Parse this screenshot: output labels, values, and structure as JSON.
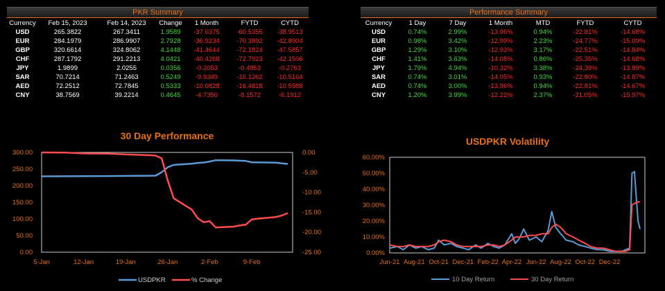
{
  "pkr": {
    "title": "PKR Summary",
    "columns": [
      "Currency",
      "Feb 15, 2023",
      "Feb 14, 2023",
      "Change",
      "1 Month",
      "FYTD",
      "CYTD"
    ],
    "rows": [
      [
        "USD",
        "265.3822",
        "267.3411",
        "1.9589",
        "-37.0375",
        "-60.5355",
        "-38.9513"
      ],
      [
        "EUR",
        "284.1979",
        "286.9907",
        "2.7928",
        "-36.9234",
        "-70.3892",
        "-42.8904"
      ],
      [
        "GBP",
        "320.6614",
        "324.8062",
        "4.1448",
        "-41.4644",
        "-72.1824",
        "-47.5857"
      ],
      [
        "CHF",
        "287.1792",
        "291.2213",
        "4.0421",
        "-40.4268",
        "-72.7923",
        "-42.1506"
      ],
      [
        "JPY",
        "1.9899",
        "2.0255",
        "0.0356",
        "-0.2053",
        "-0.4853",
        "-0.2763"
      ],
      [
        "SAR",
        "70.7214",
        "71.2463",
        "0.5249",
        "-9.9349",
        "-16.1262",
        "-10.5164"
      ],
      [
        "AED",
        "72.2512",
        "72.7845",
        "0.5333",
        "-10.0828",
        "-16.4818",
        "-10.5988"
      ],
      [
        "CNY",
        "38.7569",
        "39.2214",
        "0.4645",
        "-4.7350",
        "-8.1572",
        "-6.1912"
      ]
    ]
  },
  "perf": {
    "title": "Performance Summary",
    "columns": [
      "Currency",
      "1 Day",
      "7 Day",
      "1 Month",
      "MTD",
      "FYTD",
      "CYTD"
    ],
    "rows": [
      [
        "USD",
        "0.74%",
        "2.99%",
        "-13.96%",
        "0.94%",
        "-22.81%",
        "-14.68%"
      ],
      [
        "EUR",
        "0.98%",
        "3.42%",
        "-12.99%",
        "2.23%",
        "-24.77%",
        "-15.09%"
      ],
      [
        "GBP",
        "1.29%",
        "3.10%",
        "-12.93%",
        "3.17%",
        "-22.51%",
        "-14.84%"
      ],
      [
        "CHF",
        "1.41%",
        "3.63%",
        "-14.08%",
        "0.86%",
        "-25.35%",
        "-14.68%"
      ],
      [
        "JPY",
        "1.79%",
        "4.94%",
        "-10.32%",
        "3.38%",
        "-24.39%",
        "-13.89%"
      ],
      [
        "SAR",
        "0.74%",
        "3.01%",
        "-14.05%",
        "0.93%",
        "-22.80%",
        "-14.87%"
      ],
      [
        "AED",
        "0.74%",
        "3.00%",
        "-13.96%",
        "0.94%",
        "-22.81%",
        "-14.67%"
      ],
      [
        "CNY",
        "1.20%",
        "3.99%",
        "-12.22%",
        "2.37%",
        "-21.05%",
        "-15.97%"
      ]
    ]
  },
  "colors": {
    "accent": "#e8701a",
    "positive": "#45d845",
    "negative": "#ff2b2b",
    "blue": "#5b9bd5",
    "red": "#ff4d4d"
  },
  "chart_data": [
    {
      "type": "line",
      "title": "30 Day Performance",
      "x": [
        "2023-01-05",
        "2023-01-09",
        "2023-01-12",
        "2023-01-16",
        "2023-01-19",
        "2023-01-23",
        "2023-01-24",
        "2023-01-25",
        "2023-01-26",
        "2023-01-27",
        "2023-01-30",
        "2023-01-31",
        "2023-02-01",
        "2023-02-02",
        "2023-02-03",
        "2023-02-06",
        "2023-02-07",
        "2023-02-08",
        "2023-02-09",
        "2023-02-10",
        "2023-02-13",
        "2023-02-14",
        "2023-02-15"
      ],
      "xticks": [
        "5-Jan",
        "12-Jan",
        "19-Jan",
        "26-Jan",
        "2-Feb",
        "9-Feb"
      ],
      "xtick_dates": [
        "2023-01-05",
        "2023-01-12",
        "2023-01-19",
        "2023-01-26",
        "2023-02-02",
        "2023-02-09"
      ],
      "yticks_left": [
        "0.00",
        "50.00",
        "100.00",
        "150.00",
        "200.00",
        "250.00",
        "300.00"
      ],
      "ylim_left": [
        0,
        300
      ],
      "yticks_right": [
        "-25.00",
        "-20.00",
        "-15.00",
        "-10.00",
        "-5.00",
        "0.00"
      ],
      "ylim_right": [
        -25,
        0
      ],
      "series": [
        {
          "name": "USDPKR",
          "axis": "left",
          "color": "#5b9bd5",
          "values": [
            228.2,
            228.3,
            228.6,
            228.9,
            229.4,
            229.9,
            230.3,
            240.5,
            255.4,
            262.6,
            266.0,
            268.5,
            269.6,
            272.8,
            276.6,
            276.1,
            275.3,
            274.4,
            270.4,
            270.1,
            269.1,
            267.3,
            265.4
          ]
        },
        {
          "name": "% Change",
          "axis": "right",
          "color": "#ff4d4d",
          "values": [
            0.0,
            -0.05,
            -0.25,
            -0.3,
            -0.5,
            -0.7,
            -0.8,
            -1.5,
            -7.0,
            -11.5,
            -14.3,
            -16.5,
            -17.5,
            -17.2,
            -18.8,
            -18.6,
            -18.3,
            -18.1,
            -16.8,
            -16.6,
            -16.2,
            -15.8,
            -15.2
          ]
        }
      ]
    },
    {
      "type": "line",
      "title": "USDPKR Volatility",
      "xticks": [
        "Jun-21",
        "Aug-21",
        "Oct-21",
        "Dec-21",
        "Feb-22",
        "Apr-22",
        "Jun-22",
        "Aug-22",
        "Oct-22",
        "Dec-22"
      ],
      "xtick_dates": [
        "2021-06",
        "2021-08",
        "2021-10",
        "2021-12",
        "2022-02",
        "2022-04",
        "2022-06",
        "2022-08",
        "2022-10",
        "2022-12"
      ],
      "yticks": [
        "0.00%",
        "10.00%",
        "20.00%",
        "30.00%",
        "40.00%",
        "50.00%",
        "60.00%"
      ],
      "ylim": [
        0,
        60
      ],
      "series": [
        {
          "name": "10 Day Return",
          "color": "#5b9bd5",
          "x": [
            "2021-06-01",
            "2021-06-20",
            "2021-07-05",
            "2021-07-20",
            "2021-08-05",
            "2021-08-20",
            "2021-09-05",
            "2021-09-20",
            "2021-10-01",
            "2021-10-15",
            "2021-11-01",
            "2021-11-15",
            "2021-12-01",
            "2021-12-15",
            "2022-01-01",
            "2022-01-15",
            "2022-02-01",
            "2022-02-15",
            "2022-03-01",
            "2022-03-15",
            "2022-04-01",
            "2022-04-10",
            "2022-04-20",
            "2022-05-01",
            "2022-05-15",
            "2022-06-01",
            "2022-06-15",
            "2022-07-01",
            "2022-07-10",
            "2022-07-20",
            "2022-08-01",
            "2022-08-15",
            "2022-09-01",
            "2022-09-15",
            "2022-10-01",
            "2022-10-15",
            "2022-11-01",
            "2022-11-15",
            "2022-12-01",
            "2022-12-15",
            "2023-01-01",
            "2023-01-10",
            "2023-01-20",
            "2023-01-26",
            "2023-02-01",
            "2023-02-10",
            "2023-02-15"
          ],
          "values": [
            3,
            4,
            2,
            5,
            3,
            4,
            2,
            3,
            8,
            5,
            6,
            4,
            3,
            2,
            5,
            3,
            6,
            4,
            3,
            5,
            12,
            6,
            9,
            15,
            8,
            10,
            7,
            14,
            26,
            16,
            12,
            8,
            7,
            5,
            4,
            3,
            2,
            2,
            1,
            1,
            1,
            2,
            3,
            50,
            51,
            20,
            15
          ]
        },
        {
          "name": "30 Day Return",
          "color": "#ff4d4d",
          "x": [
            "2021-06-01",
            "2021-06-20",
            "2021-07-05",
            "2021-07-20",
            "2021-08-05",
            "2021-08-20",
            "2021-09-05",
            "2021-09-20",
            "2021-10-01",
            "2021-10-15",
            "2021-11-01",
            "2021-11-15",
            "2021-12-01",
            "2021-12-15",
            "2022-01-01",
            "2022-01-15",
            "2022-02-01",
            "2022-02-15",
            "2022-03-01",
            "2022-03-15",
            "2022-04-01",
            "2022-04-10",
            "2022-04-20",
            "2022-05-01",
            "2022-05-15",
            "2022-06-01",
            "2022-06-15",
            "2022-07-01",
            "2022-07-10",
            "2022-07-20",
            "2022-08-01",
            "2022-08-15",
            "2022-09-01",
            "2022-09-15",
            "2022-10-01",
            "2022-10-15",
            "2022-11-01",
            "2022-11-15",
            "2022-12-01",
            "2022-12-15",
            "2023-01-01",
            "2023-01-10",
            "2023-01-20",
            "2023-01-26",
            "2023-02-01",
            "2023-02-10",
            "2023-02-15"
          ],
          "values": [
            5,
            4,
            4,
            5,
            4,
            4,
            4,
            5,
            7,
            8,
            7,
            5,
            4,
            4,
            4,
            4,
            5,
            5,
            4,
            5,
            8,
            10,
            10,
            10,
            11,
            11,
            12,
            12,
            16,
            18,
            16,
            12,
            10,
            8,
            6,
            4,
            3,
            3,
            2,
            1,
            1,
            1,
            2,
            30,
            31,
            32,
            32
          ]
        }
      ]
    }
  ]
}
